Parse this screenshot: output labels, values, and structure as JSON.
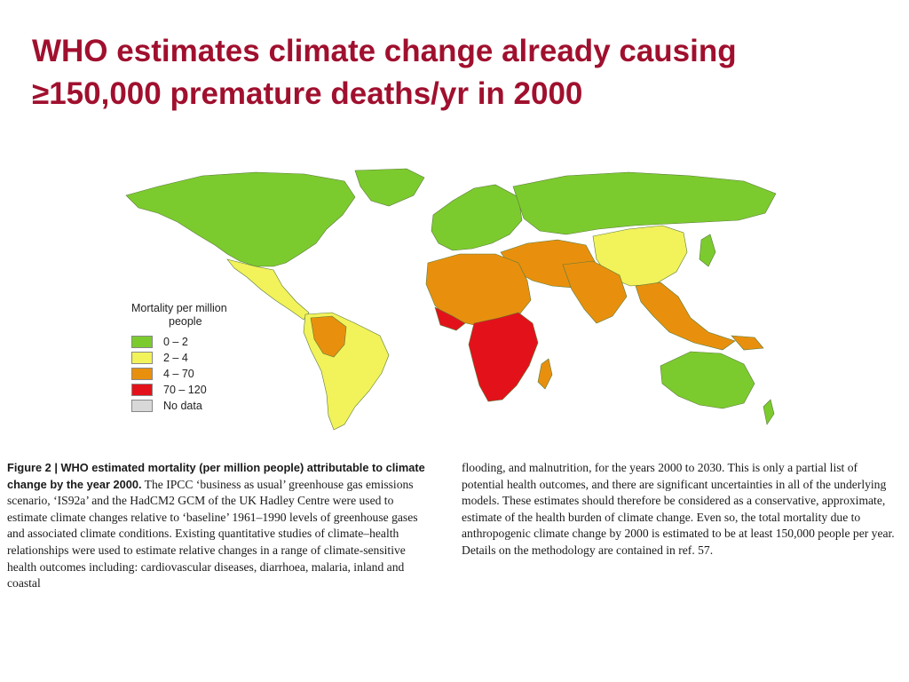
{
  "title": {
    "line1": "WHO estimates climate change already causing",
    "line2": "≥150,000 premature deaths/yr in 2000"
  },
  "legend": {
    "title_line1": "Mortality per million",
    "title_line2": "people",
    "items": [
      {
        "label": "0 – 2",
        "color": "#7ccb2e"
      },
      {
        "label": "2 – 4",
        "color": "#f2f25a"
      },
      {
        "label": "4 – 70",
        "color": "#e8900e"
      },
      {
        "label": "70 – 120",
        "color": "#e3121a"
      },
      {
        "label": "No data",
        "color": "#d8d8d8"
      }
    ]
  },
  "map_colors": {
    "green": "#7ccb2e",
    "yellow": "#f2f25a",
    "orange": "#e8900e",
    "red": "#e3121a",
    "nodata": "#d8d8d8"
  },
  "caption": {
    "figure_label": "Figure 2 | WHO estimated mortality (per million people) attributable to climate change by the year 2000.",
    "left_text": " The IPCC ‘business as usual’ greenhouse gas emissions scenario, ‘IS92a’ and the HadCM2 GCM of the UK Hadley Centre were used to estimate climate changes relative to ‘baseline’ 1961–1990 levels of greenhouse gases and associated climate conditions. Existing quantitative studies of climate–health relationships were used to estimate relative changes in a range of climate-sensitive health outcomes including: cardiovascular diseases, diarrhoea, malaria, inland and coastal",
    "right_text": "flooding, and malnutrition, for the years 2000 to 2030. This is only a partial list of potential health outcomes, and there are significant uncertainties in all of the underlying models. These estimates should therefore be considered as a conservative, approximate, estimate of the health burden of climate change. Even so, the total mortality due to anthropogenic climate change by 2000 is estimated to be at least 150,000 people per year. Details on the methodology are contained in ref. 57."
  }
}
